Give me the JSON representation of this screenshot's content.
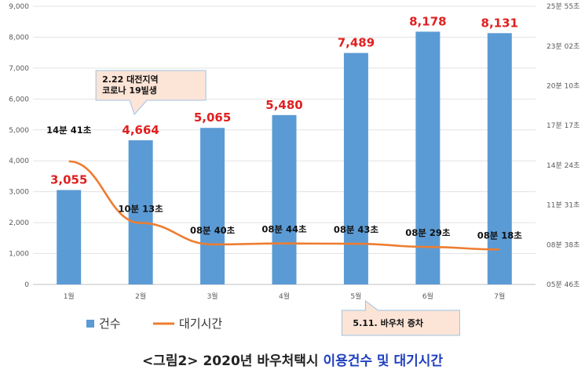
{
  "chart_data": {
    "type": "bar",
    "categories": [
      "1월",
      "2월",
      "3월",
      "4월",
      "5월",
      "6월",
      "7월"
    ],
    "series": [
      {
        "name": "건수",
        "type": "bar",
        "values": [
          3055,
          4664,
          5065,
          5480,
          7489,
          8178,
          8131
        ],
        "labels": [
          "3,055",
          "4,664",
          "5,065",
          "5,480",
          "7,489",
          "8,178",
          "8,131"
        ]
      },
      {
        "name": "대기시간",
        "type": "line",
        "axis": "right",
        "values_seconds": [
          881,
          613,
          520,
          524,
          523,
          509,
          498
        ],
        "labels": [
          "14분 41초",
          "10분 13초",
          "08분 40초",
          "08분 44초",
          "08분 43초",
          "08분 29초",
          "08분 18초"
        ]
      }
    ],
    "y_left": {
      "min": 0,
      "max": 9000,
      "ticks": [
        0,
        1000,
        2000,
        3000,
        4000,
        5000,
        6000,
        7000,
        8000,
        9000
      ],
      "tick_labels": [
        "0",
        "1,000",
        "2,000",
        "3,000",
        "4,000",
        "5,000",
        "6,000",
        "7,000",
        "8,000",
        "9,000"
      ]
    },
    "y_right": {
      "ticks_seconds": [
        346,
        518,
        691,
        864,
        1037,
        1210,
        1382,
        1555
      ],
      "tick_labels": [
        "05분 46초",
        "08분 38초",
        "11분 31초",
        "14분 24초",
        "17분 17초",
        "20분 10초",
        "23분 02초",
        "25분 55초"
      ]
    },
    "annotations": [
      {
        "category_index": 1,
        "lines": [
          "2.22 대전지역",
          "코로나 19빌생"
        ]
      },
      {
        "category_index": 4,
        "lines": [
          "5.11. 바우처 증차"
        ]
      }
    ],
    "colors": {
      "bar": "#5b9bd5",
      "line": "#ed7d31",
      "data_label": "#e02020",
      "callout_fill": "#fce4d6",
      "callout_border": "#9dc3e6"
    }
  },
  "caption": {
    "prefix": "<그림2> 2020년 바우처택시 ",
    "highlight": "이용건수 및 대기시간"
  }
}
